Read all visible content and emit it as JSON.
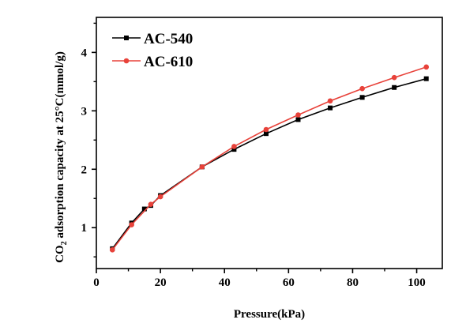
{
  "chart_data": {
    "type": "line",
    "xlabel": "Pressure(kPa)",
    "ylabel": "CO₂ adsorption capacity at 25°C(mmol/g)",
    "xlim": [
      0,
      108
    ],
    "ylim": [
      0.3,
      4.6
    ],
    "xticks": [
      0,
      20,
      40,
      60,
      80,
      100
    ],
    "yticks": [
      1,
      2,
      3,
      4
    ],
    "grid": false,
    "legend_position": "top-left",
    "series": [
      {
        "name": "AC-540",
        "color": "#000000",
        "marker": "square",
        "x": [
          5,
          11,
          15,
          17,
          20,
          33,
          43,
          53,
          63,
          73,
          83,
          93,
          103
        ],
        "y": [
          0.64,
          1.08,
          1.32,
          1.38,
          1.55,
          2.04,
          2.34,
          2.61,
          2.85,
          3.05,
          3.23,
          3.4,
          3.55
        ]
      },
      {
        "name": "AC-610",
        "color": "#e8423a",
        "marker": "circle",
        "x": [
          5,
          11,
          17,
          20,
          33,
          43,
          53,
          63,
          73,
          83,
          93,
          103
        ],
        "y": [
          0.62,
          1.05,
          1.4,
          1.53,
          2.04,
          2.39,
          2.68,
          2.93,
          3.17,
          3.38,
          3.57,
          3.75
        ]
      }
    ]
  }
}
